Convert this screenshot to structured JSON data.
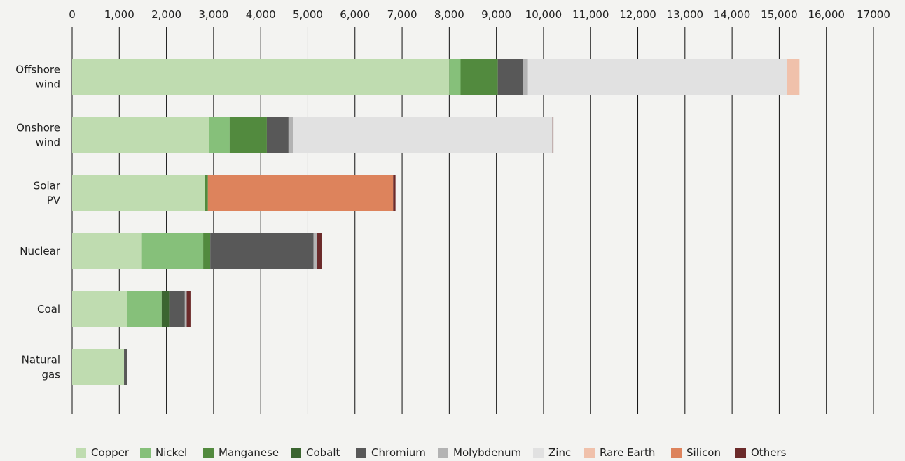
{
  "chart_data": {
    "type": "bar",
    "orientation": "horizontal",
    "stacked": true,
    "xlim": [
      0,
      17000
    ],
    "x_ticks": [
      "0",
      "1,000",
      "2,000",
      "3,000",
      "4,000",
      "5,000",
      "6,000",
      "7,000",
      "8,000",
      "9,000",
      "10,000",
      "11,000",
      "12,000",
      "13,000",
      "14,000",
      "15,000",
      "16,000",
      "17000"
    ],
    "x_tick_values": [
      0,
      1000,
      2000,
      3000,
      4000,
      5000,
      6000,
      7000,
      8000,
      9000,
      10000,
      11000,
      12000,
      13000,
      14000,
      15000,
      16000,
      17000
    ],
    "axis_position": "top",
    "grid": "vertical",
    "legend_placement": "bottom",
    "categories": [
      [
        "Offshore",
        "wind"
      ],
      [
        "Onshore",
        "wind"
      ],
      [
        "Solar",
        "PV"
      ],
      [
        "Nuclear"
      ],
      [
        "Coal"
      ],
      [
        "Natural",
        "gas"
      ]
    ],
    "series": [
      {
        "name": "Copper",
        "color": "#bfdcb0",
        "values": [
          8000,
          2900,
          2820,
          1480,
          1160,
          1100
        ]
      },
      {
        "name": "Nickel",
        "color": "#86c07a",
        "values": [
          240,
          440,
          0,
          1300,
          740,
          0
        ]
      },
      {
        "name": "Manganese",
        "color": "#528a3e",
        "values": [
          790,
          790,
          60,
          150,
          0,
          0
        ]
      },
      {
        "name": "Cobalt",
        "color": "#3b6530",
        "values": [
          0,
          0,
          0,
          0,
          160,
          0
        ]
      },
      {
        "name": "Chromium",
        "color": "#585858",
        "values": [
          540,
          460,
          0,
          2190,
          330,
          60
        ]
      },
      {
        "name": "Molybdenum",
        "color": "#b3b3b3",
        "values": [
          100,
          100,
          0,
          70,
          40,
          0
        ]
      },
      {
        "name": "Zinc",
        "color": "#e1e1e1",
        "values": [
          5500,
          5500,
          0,
          0,
          0,
          0
        ]
      },
      {
        "name": "Rare Earth",
        "color": "#f0c1ab",
        "values": [
          260,
          0,
          0,
          0,
          0,
          0
        ]
      },
      {
        "name": "Silicon",
        "color": "#dd835c",
        "values": [
          0,
          0,
          3930,
          0,
          0,
          0
        ]
      },
      {
        "name": "Others",
        "color": "#6b2a2a",
        "values": [
          0,
          20,
          50,
          100,
          80,
          0
        ]
      }
    ]
  }
}
